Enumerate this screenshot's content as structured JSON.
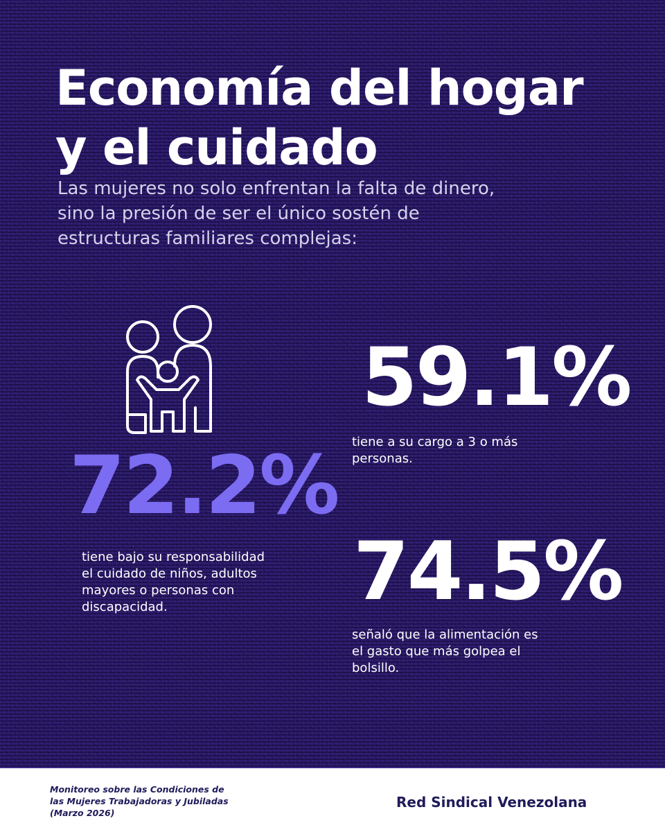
{
  "header": {
    "title_line1": "Economía del hogar",
    "title_line2": "y el cuidado",
    "subtitle_line1": "Las mujeres no solo enfrentan la falta de dinero,",
    "subtitle_line2": "sino la presión de ser el único sostén de",
    "subtitle_line3": "estructuras familiares complejas:"
  },
  "icon": "family-icon",
  "stats": [
    {
      "value": "72.2%",
      "desc_line1": "tiene bajo su responsabilidad",
      "desc_line2": "el cuidado de niños, adultos",
      "desc_line3": "mayores o personas con",
      "desc_line4": "discapacidad.",
      "color": "#7b6cf2"
    },
    {
      "value": "59.1%",
      "desc_line1": "tiene a su cargo a 3 o más",
      "desc_line2": "personas.",
      "color": "#ffffff"
    },
    {
      "value": "74.5%",
      "desc_line1": "señaló que la alimentación es",
      "desc_line2": "el gasto que más golpea el",
      "desc_line3": "bolsillo.",
      "color": "#ffffff"
    }
  ],
  "footer": {
    "source_line1": "Monitoreo sobre las Condiciones de",
    "source_line2": "las Mujeres Trabajadoras y Jubiladas",
    "source_line3": "(Marzo 2026)",
    "organization": "Red Sindical Venezolana"
  },
  "colors": {
    "background": "#2e1c6c",
    "accent": "#7b6cf2",
    "text": "#ffffff",
    "footer_text": "#1f1b5a"
  }
}
